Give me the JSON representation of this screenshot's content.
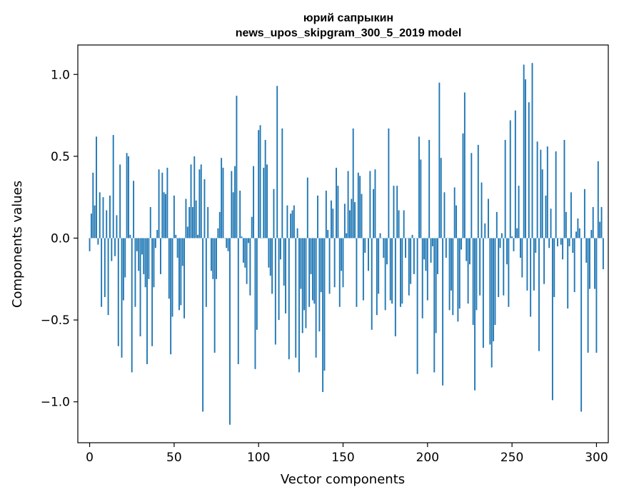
{
  "chart_data": {
    "type": "bar",
    "title": "юрий сапрыкин",
    "subtitle": "news_upos_skipgram_300_5_2019 model",
    "xlabel": "Vector components",
    "ylabel": "Components values",
    "xlim": [
      -7,
      307
    ],
    "ylim": [
      -1.25,
      1.18
    ],
    "xticks": [
      0,
      50,
      100,
      150,
      200,
      250,
      300
    ],
    "xtick_labels": [
      "0",
      "50",
      "100",
      "150",
      "200",
      "250",
      "300"
    ],
    "yticks": [
      -1.0,
      -0.5,
      0.0,
      0.5,
      1.0
    ],
    "ytick_labels": [
      "−1.0",
      "−0.5",
      "0.0",
      "0.5",
      "1.0"
    ],
    "bar_color": "#1f77b4",
    "values": [
      -0.08,
      0.15,
      0.4,
      0.2,
      0.62,
      -0.04,
      0.28,
      -0.42,
      0.25,
      -0.36,
      0.17,
      -0.47,
      0.26,
      -0.14,
      0.63,
      -0.11,
      0.14,
      -0.66,
      0.45,
      -0.73,
      -0.38,
      -0.24,
      0.52,
      0.5,
      0.02,
      -0.82,
      0.35,
      -0.42,
      -0.08,
      -0.2,
      -0.6,
      -0.1,
      -0.22,
      -0.3,
      -0.77,
      -0.25,
      0.19,
      -0.66,
      -0.3,
      -0.06,
      0.05,
      0.42,
      -0.22,
      0.4,
      0.28,
      0.27,
      0.43,
      -0.37,
      -0.71,
      -0.48,
      0.26,
      0.02,
      -0.12,
      -0.44,
      -0.41,
      -0.17,
      -0.49,
      0.24,
      0.07,
      0.19,
      0.45,
      0.19,
      0.5,
      0.23,
      0.02,
      0.42,
      0.45,
      -1.06,
      0.36,
      -0.42,
      0.19,
      0.0,
      -0.2,
      -0.25,
      -0.7,
      -0.25,
      0.06,
      0.16,
      0.49,
      0.43,
      0.0,
      -0.06,
      -0.08,
      -1.14,
      0.41,
      0.28,
      0.44,
      0.87,
      -0.77,
      0.29,
      0.01,
      -0.15,
      -0.18,
      -0.28,
      -0.03,
      -0.35,
      0.13,
      0.44,
      -0.8,
      -0.56,
      0.66,
      0.69,
      0.0,
      0.43,
      0.6,
      0.45,
      -0.18,
      -0.23,
      -0.34,
      0.3,
      -0.65,
      0.93,
      -0.5,
      -0.13,
      0.67,
      -0.29,
      -0.46,
      0.2,
      -0.74,
      0.15,
      0.17,
      0.2,
      -0.73,
      0.06,
      -0.82,
      -0.31,
      -0.58,
      -0.44,
      -0.55,
      0.37,
      -0.42,
      -0.22,
      -0.38,
      -0.4,
      -0.73,
      0.26,
      -0.57,
      -0.33,
      -0.94,
      -0.81,
      0.29,
      0.05,
      -0.34,
      0.23,
      0.18,
      -0.3,
      0.43,
      0.32,
      -0.42,
      -0.2,
      -0.3,
      0.21,
      0.03,
      0.41,
      0.17,
      0.24,
      0.67,
      0.22,
      -0.42,
      0.4,
      0.38,
      0.27,
      -0.38,
      -0.09,
      0.0,
      -0.2,
      0.41,
      -0.56,
      0.3,
      0.42,
      -0.47,
      -0.34,
      0.03,
      0.0,
      -0.12,
      -0.44,
      -0.16,
      0.67,
      -0.38,
      -0.4,
      0.32,
      -0.6,
      0.32,
      0.17,
      -0.42,
      -0.4,
      0.17,
      -0.12,
      0.0,
      -0.35,
      -0.28,
      0.02,
      -0.22,
      0.0,
      -0.83,
      0.62,
      0.48,
      -0.49,
      -0.13,
      -0.2,
      -0.38,
      0.6,
      -0.15,
      -0.05,
      -0.82,
      -0.58,
      -0.22,
      0.95,
      0.49,
      -0.9,
      0.28,
      -0.12,
      0.0,
      -0.44,
      -0.32,
      -0.47,
      0.31,
      0.2,
      -0.51,
      -0.43,
      -0.07,
      0.64,
      0.89,
      -0.14,
      -0.4,
      -0.16,
      0.52,
      -0.53,
      -0.93,
      -0.44,
      0.57,
      -0.35,
      0.34,
      -0.67,
      0.09,
      0.0,
      0.24,
      -0.65,
      -0.79,
      -0.63,
      -0.53,
      0.16,
      -0.36,
      -0.06,
      0.03,
      -0.35,
      0.6,
      -0.16,
      -0.42,
      0.72,
      0.01,
      -0.08,
      0.78,
      0.06,
      0.32,
      -0.12,
      -0.24,
      1.06,
      0.97,
      -0.32,
      0.83,
      -0.48,
      1.07,
      -0.32,
      -0.09,
      0.59,
      -0.69,
      0.54,
      0.42,
      -0.28,
      0.26,
      0.56,
      -0.06,
      0.18,
      -0.99,
      -0.36,
      0.53,
      -0.05,
      0.0,
      -0.04,
      -0.13,
      0.6,
      0.16,
      -0.43,
      -0.05,
      0.28,
      -0.09,
      -0.33,
      0.04,
      0.12,
      0.06,
      -1.06,
      0.0,
      0.3,
      -0.15,
      -0.7,
      -0.31,
      0.05,
      0.19,
      -0.31,
      -0.7,
      0.47,
      0.1,
      0.19,
      -0.19
    ]
  }
}
